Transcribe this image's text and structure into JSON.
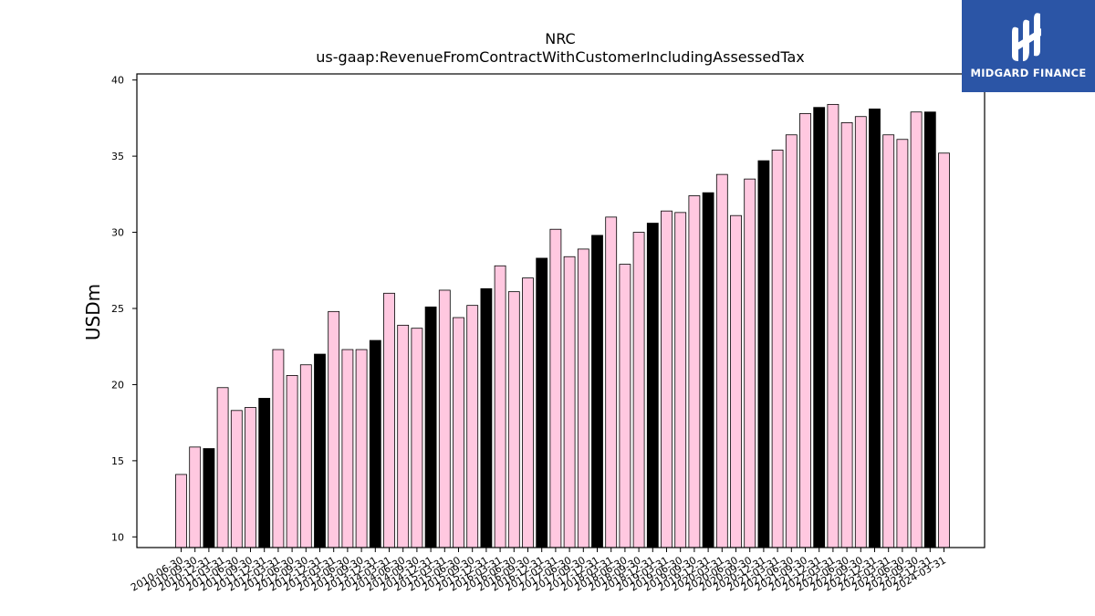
{
  "brand": {
    "name": "MIDGARD FINANCE",
    "bg_color": "#2b55a6"
  },
  "chart_data": {
    "type": "bar",
    "title": "NRC",
    "subtitle": "us-gaap:RevenueFromContractWithCustomerIncludingAssessedTax",
    "xlabel": "",
    "ylabel": "USDm",
    "ylim": [
      9.3,
      40.4
    ],
    "yticks": [
      10,
      15,
      20,
      25,
      30,
      35,
      40
    ],
    "grid": false,
    "colors": {
      "quarter": "#ffc8e0",
      "annual": "#000000",
      "edge": "#000000"
    },
    "categories": [
      "2010-06-30",
      "2010-09-30",
      "2010-12-31",
      "2011-03-31",
      "2011-06-30",
      "2011-09-30",
      "2011-12-31",
      "2012-03-31",
      "2012-06-30",
      "2012-09-30",
      "2012-12-31",
      "2013-03-31",
      "2013-06-30",
      "2013-09-30",
      "2013-12-31",
      "2014-03-31",
      "2014-06-30",
      "2014-09-30",
      "2014-12-31",
      "2015-03-31",
      "2015-06-30",
      "2015-09-30",
      "2015-12-31",
      "2016-03-31",
      "2016-06-30",
      "2016-09-30",
      "2016-12-31",
      "2017-03-31",
      "2017-06-30",
      "2017-09-30",
      "2017-12-31",
      "2018-03-31",
      "2018-06-30",
      "2018-09-30",
      "2018-12-31",
      "2019-03-31",
      "2019-06-30",
      "2019-09-30",
      "2019-12-31",
      "2020-03-31",
      "2020-06-30",
      "2020-09-30",
      "2020-12-31",
      "2021-03-31",
      "2021-06-30",
      "2021-09-30",
      "2021-12-31",
      "2022-03-31",
      "2022-06-30",
      "2022-09-30",
      "2022-12-31",
      "2023-03-31",
      "2023-06-30",
      "2023-09-30",
      "2023-12-31",
      "2024-03-31"
    ],
    "values": [
      14.1,
      15.9,
      15.8,
      19.8,
      18.3,
      18.5,
      19.1,
      22.3,
      20.6,
      21.3,
      22.0,
      24.8,
      22.3,
      22.3,
      22.9,
      26.0,
      23.9,
      23.7,
      25.1,
      26.2,
      24.4,
      25.2,
      26.3,
      27.8,
      26.1,
      27.0,
      28.3,
      30.2,
      28.4,
      28.9,
      29.8,
      31.0,
      27.9,
      30.0,
      30.6,
      31.4,
      31.3,
      32.4,
      32.6,
      33.8,
      31.1,
      33.5,
      34.7,
      35.4,
      36.4,
      37.8,
      38.2,
      38.4,
      37.2,
      37.6,
      38.1,
      36.4,
      36.1,
      37.9,
      37.9,
      35.2
    ],
    "annual": [
      false,
      false,
      true,
      false,
      false,
      false,
      true,
      false,
      false,
      false,
      true,
      false,
      false,
      false,
      true,
      false,
      false,
      false,
      true,
      false,
      false,
      false,
      true,
      false,
      false,
      false,
      true,
      false,
      false,
      false,
      true,
      false,
      false,
      false,
      true,
      false,
      false,
      false,
      true,
      false,
      false,
      false,
      true,
      false,
      false,
      false,
      true,
      false,
      false,
      false,
      true,
      false,
      false,
      false,
      true,
      false
    ]
  }
}
